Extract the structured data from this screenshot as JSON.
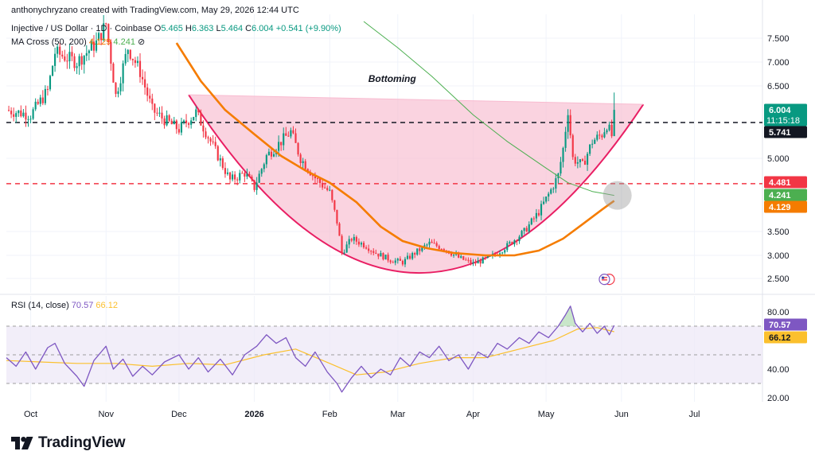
{
  "header": {
    "credit": "anthonychryzano created with TradingView.com, May 29, 2026 12:44 UTC",
    "symbol": "Injective / US Dollar · 1D · Coinbase",
    "ohlc": {
      "o_label": "O",
      "o": "5.465",
      "h_label": "H",
      "h": "6.363",
      "l_label": "L",
      "l": "5.464",
      "c_label": "C",
      "c": "6.004",
      "change": "+0.541 (+9.90%)"
    },
    "ma_label": "MA Cross (50, 200)",
    "ma50": "4.129",
    "ma200": "4.241"
  },
  "rsi_header": {
    "label": "RSI (14, close)",
    "rsi": "70.57",
    "ma": "66.12"
  },
  "footer": {
    "brand": "TradingView"
  },
  "colors": {
    "up": "#089981",
    "down": "#f23645",
    "ma50": "#f57c00",
    "ma200": "#4caf50",
    "pattern_fill": "#f8bbd0",
    "pattern_line": "#e91e63",
    "rsi": "#7e57c2",
    "rsi_ma": "#fbc02d",
    "rsi_band": "#ede7f6",
    "grid": "#f0f3fa",
    "axis_text": "#131722"
  },
  "chart_data": [
    {
      "type": "candlestick",
      "title": "Injective / US Dollar · 1D · Coinbase",
      "annotations": [
        {
          "text": "Bottoming",
          "kind": "cup-pattern",
          "from": "2025-12-05",
          "to": "2026-06-10",
          "rim": 6.25,
          "trough": 2.62
        }
      ],
      "y_ticks": [
        "7.500",
        "7.000",
        "6.500",
        "5.000",
        "3.500",
        "3.000",
        "2.500"
      ],
      "x_ticks": [
        "Oct",
        "Nov",
        "Dec",
        "2026",
        "Feb",
        "Mar",
        "Apr",
        "May",
        "Jun",
        "Jul"
      ],
      "x_tick_dates": [
        "2025-10-01",
        "2025-11-01",
        "2025-12-01",
        "2026-01-01",
        "2026-02-01",
        "2026-03-01",
        "2026-04-01",
        "2026-05-01",
        "2026-06-01",
        "2026-07-01"
      ],
      "x_range": [
        "2025-09-21",
        "2026-07-29"
      ],
      "y_range": [
        2.3,
        7.85
      ],
      "price_labels": [
        {
          "value": "6.004",
          "sub": "11:15:18",
          "bg": "#089981"
        },
        {
          "value": "5.741",
          "bg": "#131722"
        },
        {
          "value": "4.481",
          "bg": "#f23645"
        },
        {
          "value": "4.241",
          "bg": "#4caf50"
        },
        {
          "value": "4.129",
          "bg": "#f57c00"
        }
      ],
      "horizontal_lines": [
        {
          "value": 5.741,
          "color": "#131722",
          "style": "dashed"
        },
        {
          "value": 4.481,
          "color": "#f23645",
          "style": "dashed"
        }
      ],
      "close_path": [
        [
          "2025-09-21",
          6.0
        ],
        [
          "2025-10-01",
          5.9
        ],
        [
          "2025-10-08",
          6.4
        ],
        [
          "2025-10-11",
          7.2
        ],
        [
          "2025-10-20",
          7.0
        ],
        [
          "2025-10-28",
          7.4
        ],
        [
          "2025-11-01",
          7.8
        ],
        [
          "2025-11-05",
          6.3
        ],
        [
          "2025-11-10",
          7.3
        ],
        [
          "2025-11-15",
          6.8
        ],
        [
          "2025-11-20",
          6.0
        ],
        [
          "2025-11-25",
          5.8
        ],
        [
          "2025-12-01",
          5.6
        ],
        [
          "2025-12-08",
          5.95
        ],
        [
          "2025-12-15",
          5.25
        ],
        [
          "2025-12-22",
          4.55
        ],
        [
          "2025-12-28",
          4.7
        ],
        [
          "2026-01-01",
          4.4
        ],
        [
          "2026-01-06",
          5.05
        ],
        [
          "2026-01-10",
          5.25
        ],
        [
          "2026-01-16",
          5.55
        ],
        [
          "2026-01-20",
          5.0
        ],
        [
          "2026-01-26",
          4.6
        ],
        [
          "2026-02-01",
          4.3
        ],
        [
          "2026-02-04",
          3.7
        ],
        [
          "2026-02-06",
          3.05
        ],
        [
          "2026-02-10",
          3.35
        ],
        [
          "2026-02-16",
          3.2
        ],
        [
          "2026-02-20",
          3.05
        ],
        [
          "2026-02-26",
          2.9
        ],
        [
          "2026-03-03",
          2.85
        ],
        [
          "2026-03-08",
          3.05
        ],
        [
          "2026-03-14",
          3.25
        ],
        [
          "2026-03-20",
          3.15
        ],
        [
          "2026-03-26",
          2.95
        ],
        [
          "2026-04-01",
          2.82
        ],
        [
          "2026-04-08",
          2.95
        ],
        [
          "2026-04-15",
          3.2
        ],
        [
          "2026-04-22",
          3.5
        ],
        [
          "2026-04-28",
          3.9
        ],
        [
          "2026-05-03",
          4.35
        ],
        [
          "2026-05-06",
          4.65
        ],
        [
          "2026-05-08",
          5.2
        ],
        [
          "2026-05-10",
          6.0
        ],
        [
          "2026-05-12",
          5.0
        ],
        [
          "2026-05-16",
          4.85
        ],
        [
          "2026-05-20",
          5.35
        ],
        [
          "2026-05-24",
          5.5
        ],
        [
          "2026-05-26",
          5.7
        ],
        [
          "2026-05-28",
          5.465
        ],
        [
          "2026-05-29",
          6.004
        ]
      ],
      "ma50": [
        [
          "2025-11-30",
          7.4
        ],
        [
          "2025-12-10",
          6.6
        ],
        [
          "2025-12-20",
          6.0
        ],
        [
          "2026-01-01",
          5.5
        ],
        [
          "2026-01-12",
          5.05
        ],
        [
          "2026-01-22",
          4.75
        ],
        [
          "2026-02-01",
          4.5
        ],
        [
          "2026-02-12",
          4.1
        ],
        [
          "2026-02-22",
          3.6
        ],
        [
          "2026-03-03",
          3.3
        ],
        [
          "2026-03-13",
          3.15
        ],
        [
          "2026-03-24",
          3.05
        ],
        [
          "2026-04-06",
          3.0
        ],
        [
          "2026-04-18",
          3.0
        ],
        [
          "2026-04-28",
          3.1
        ],
        [
          "2026-05-08",
          3.35
        ],
        [
          "2026-05-16",
          3.65
        ],
        [
          "2026-05-24",
          3.95
        ],
        [
          "2026-05-29",
          4.129
        ]
      ],
      "ma200": [
        [
          "2026-02-15",
          7.85
        ],
        [
          "2026-03-01",
          7.3
        ],
        [
          "2026-03-15",
          6.7
        ],
        [
          "2026-04-01",
          5.9
        ],
        [
          "2026-04-15",
          5.35
        ],
        [
          "2026-05-01",
          4.8
        ],
        [
          "2026-05-10",
          4.5
        ],
        [
          "2026-05-20",
          4.32
        ],
        [
          "2026-05-29",
          4.241
        ]
      ]
    },
    {
      "type": "line",
      "title": "RSI (14, close)",
      "y_ticks": [
        "80.00",
        "40.00",
        "20.00"
      ],
      "y_range": [
        14,
        88
      ],
      "bands": [
        70,
        50,
        30
      ],
      "price_labels": [
        {
          "value": "70.57",
          "bg": "#7e57c2"
        },
        {
          "value": "66.12",
          "bg": "#fbc02d"
        }
      ],
      "rsi": [
        [
          "2025-09-21",
          48
        ],
        [
          "2025-09-25",
          42
        ],
        [
          "2025-09-29",
          52
        ],
        [
          "2025-10-03",
          40
        ],
        [
          "2025-10-08",
          55
        ],
        [
          "2025-10-11",
          58
        ],
        [
          "2025-10-15",
          44
        ],
        [
          "2025-10-20",
          35
        ],
        [
          "2025-10-23",
          28
        ],
        [
          "2025-10-27",
          46
        ],
        [
          "2025-11-01",
          56
        ],
        [
          "2025-11-04",
          40
        ],
        [
          "2025-11-08",
          47
        ],
        [
          "2025-11-12",
          35
        ],
        [
          "2025-11-16",
          42
        ],
        [
          "2025-11-20",
          36
        ],
        [
          "2025-11-25",
          45
        ],
        [
          "2025-12-01",
          50
        ],
        [
          "2025-12-05",
          40
        ],
        [
          "2025-12-09",
          48
        ],
        [
          "2025-12-13",
          38
        ],
        [
          "2025-12-18",
          47
        ],
        [
          "2025-12-23",
          36
        ],
        [
          "2025-12-28",
          50
        ],
        [
          "2026-01-02",
          56
        ],
        [
          "2026-01-06",
          64
        ],
        [
          "2026-01-10",
          58
        ],
        [
          "2026-01-14",
          62
        ],
        [
          "2026-01-18",
          48
        ],
        [
          "2026-01-22",
          42
        ],
        [
          "2026-01-26",
          52
        ],
        [
          "2026-01-31",
          38
        ],
        [
          "2026-02-04",
          30
        ],
        [
          "2026-02-06",
          24
        ],
        [
          "2026-02-10",
          34
        ],
        [
          "2026-02-14",
          42
        ],
        [
          "2026-02-18",
          34
        ],
        [
          "2026-02-22",
          40
        ],
        [
          "2026-02-26",
          36
        ],
        [
          "2026-03-02",
          48
        ],
        [
          "2026-03-06",
          42
        ],
        [
          "2026-03-10",
          52
        ],
        [
          "2026-03-14",
          48
        ],
        [
          "2026-03-18",
          56
        ],
        [
          "2026-03-22",
          46
        ],
        [
          "2026-03-26",
          50
        ],
        [
          "2026-03-30",
          40
        ],
        [
          "2026-04-03",
          52
        ],
        [
          "2026-04-07",
          48
        ],
        [
          "2026-04-11",
          58
        ],
        [
          "2026-04-15",
          54
        ],
        [
          "2026-04-20",
          62
        ],
        [
          "2026-04-24",
          58
        ],
        [
          "2026-04-28",
          66
        ],
        [
          "2026-05-02",
          62
        ],
        [
          "2026-05-06",
          70
        ],
        [
          "2026-05-09",
          78
        ],
        [
          "2026-05-11",
          84
        ],
        [
          "2026-05-13",
          72
        ],
        [
          "2026-05-16",
          66
        ],
        [
          "2026-05-19",
          72
        ],
        [
          "2026-05-22",
          65
        ],
        [
          "2026-05-25",
          70
        ],
        [
          "2026-05-27",
          64
        ],
        [
          "2026-05-29",
          70.57
        ]
      ],
      "rsi_ma": [
        [
          "2025-09-21",
          46
        ],
        [
          "2025-10-05",
          45
        ],
        [
          "2025-10-20",
          44
        ],
        [
          "2025-11-05",
          44
        ],
        [
          "2025-11-20",
          42
        ],
        [
          "2025-12-05",
          44
        ],
        [
          "2025-12-20",
          43
        ],
        [
          "2026-01-05",
          50
        ],
        [
          "2026-01-18",
          54
        ],
        [
          "2026-02-01",
          44
        ],
        [
          "2026-02-12",
          36
        ],
        [
          "2026-02-24",
          38
        ],
        [
          "2026-03-10",
          44
        ],
        [
          "2026-03-24",
          48
        ],
        [
          "2026-04-06",
          48
        ],
        [
          "2026-04-20",
          54
        ],
        [
          "2026-05-04",
          60
        ],
        [
          "2026-05-14",
          68
        ],
        [
          "2026-05-22",
          69
        ],
        [
          "2026-05-29",
          66.12
        ]
      ]
    }
  ]
}
